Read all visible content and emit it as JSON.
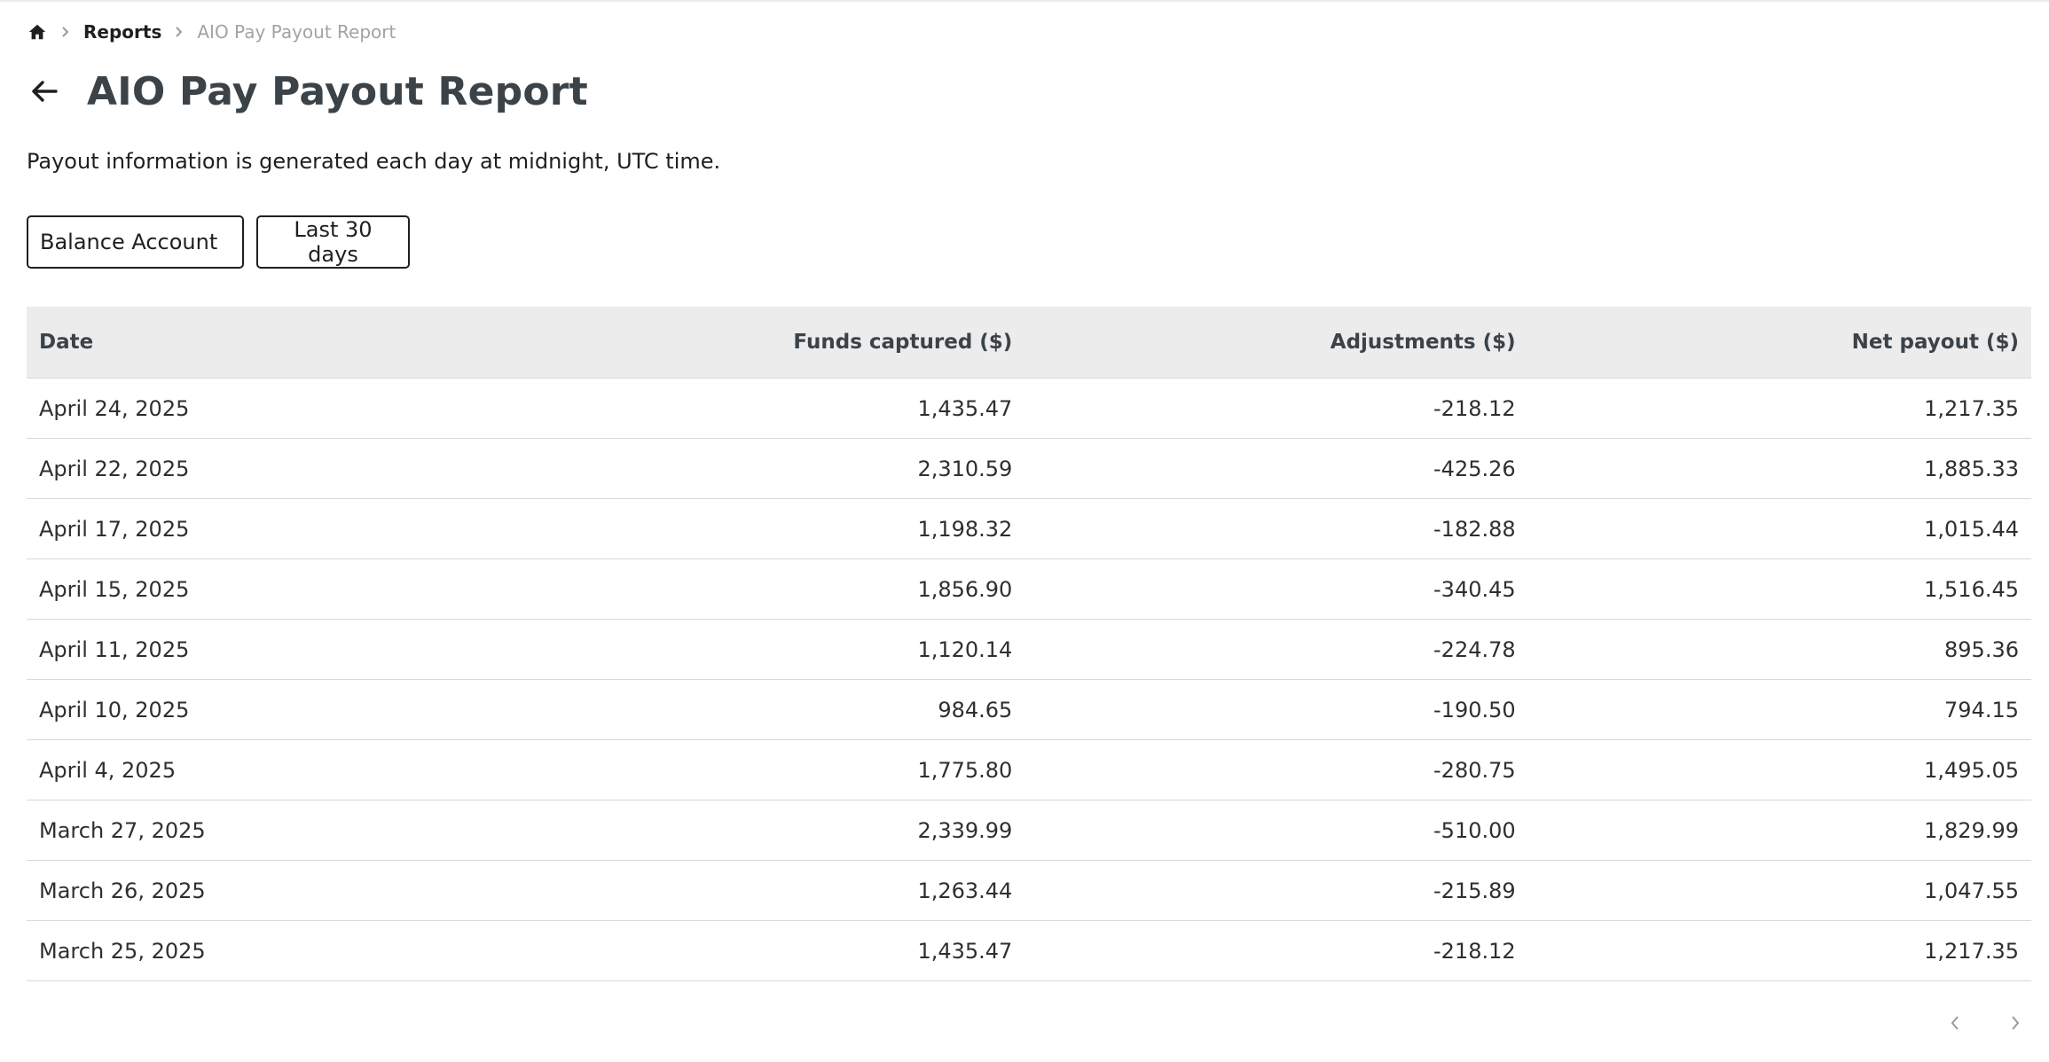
{
  "breadcrumb": {
    "home_icon": "home-icon",
    "items": [
      {
        "label": "Reports"
      },
      {
        "label": "AIO Pay Payout Report"
      }
    ]
  },
  "header": {
    "back_icon": "arrow-left-icon",
    "title": "AIO Pay Payout Report"
  },
  "subtitle": "Payout information is generated each day at midnight, UTC time.",
  "filters": {
    "balance_account": "Balance Account",
    "date_range": "Last 30 days"
  },
  "table": {
    "headers": {
      "date": "Date",
      "funds": "Funds captured ($)",
      "adjustments": "Adjustments ($)",
      "net": "Net payout ($)"
    },
    "rows": [
      {
        "date": "April 24, 2025",
        "funds": "1,435.47",
        "adjustments": "-218.12",
        "net": "1,217.35"
      },
      {
        "date": "April 22, 2025",
        "funds": "2,310.59",
        "adjustments": "-425.26",
        "net": "1,885.33"
      },
      {
        "date": "April 17, 2025",
        "funds": "1,198.32",
        "adjustments": "-182.88",
        "net": "1,015.44"
      },
      {
        "date": "April 15, 2025",
        "funds": "1,856.90",
        "adjustments": "-340.45",
        "net": "1,516.45"
      },
      {
        "date": "April 11, 2025",
        "funds": "1,120.14",
        "adjustments": "-224.78",
        "net": "895.36"
      },
      {
        "date": "April 10, 2025",
        "funds": "984.65",
        "adjustments": "-190.50",
        "net": "794.15"
      },
      {
        "date": "April 4, 2025",
        "funds": "1,775.80",
        "adjustments": "-280.75",
        "net": "1,495.05"
      },
      {
        "date": "March 27, 2025",
        "funds": "2,339.99",
        "adjustments": "-510.00",
        "net": "1,829.99"
      },
      {
        "date": "March 26, 2025",
        "funds": "1,263.44",
        "adjustments": "-215.89",
        "net": "1,047.55"
      },
      {
        "date": "March 25, 2025",
        "funds": "1,435.47",
        "adjustments": "-218.12",
        "net": "1,217.35"
      }
    ]
  },
  "pagination": {
    "prev_icon": "chevron-left-icon",
    "next_icon": "chevron-right-icon"
  },
  "colors": {
    "header_bg": "#ececec",
    "title_text": "#3b4349",
    "muted_text": "#a3a3a3"
  }
}
